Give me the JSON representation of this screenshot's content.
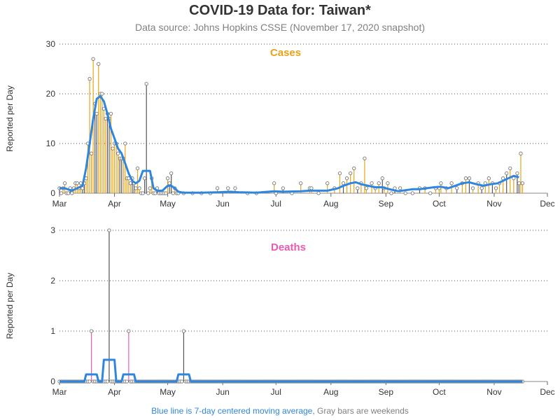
{
  "title": "COVID-19 Data for: Taiwan*",
  "subtitle": "Data source: Johns Hopkins CSSE (November 17, 2020 snapshot)",
  "footnote": {
    "blue_part": "Blue line is 7-day centered moving average,",
    "gray_part": "Gray bars are weekends"
  },
  "colors": {
    "cases": "#e8a317",
    "deaths": "#e75bb0",
    "moving_average": "#2e86de",
    "weekend": "#555555",
    "marker": "#777777"
  },
  "chart_data": [
    {
      "type": "bar",
      "title": "Cases",
      "ylabel": "Reported per Day",
      "ylim": [
        0,
        30
      ],
      "yticks": [
        0,
        10,
        20,
        30
      ],
      "x_start": "2020-03-01",
      "x_end": "2020-12-01",
      "x_ticks": [
        "Mar",
        "Apr",
        "May",
        "Jun",
        "Jul",
        "Aug",
        "Sep",
        "Oct",
        "Nov",
        "Dec"
      ],
      "x_tick_dates": [
        "2020-03-01",
        "2020-04-01",
        "2020-05-01",
        "2020-06-01",
        "2020-07-01",
        "2020-08-01",
        "2020-09-01",
        "2020-10-01",
        "2020-11-01",
        "2020-12-01"
      ],
      "grid": "horizontal dotted",
      "series": [
        {
          "kind": "daily",
          "points": [
            [
              "2020-03-01",
              1
            ],
            [
              "2020-03-02",
              0
            ],
            [
              "2020-03-03",
              1
            ],
            [
              "2020-03-04",
              2
            ],
            [
              "2020-03-05",
              0
            ],
            [
              "2020-03-06",
              0
            ],
            [
              "2020-03-07",
              1
            ],
            [
              "2020-03-08",
              0
            ],
            [
              "2020-03-09",
              1
            ],
            [
              "2020-03-10",
              2
            ],
            [
              "2020-03-11",
              2
            ],
            [
              "2020-03-12",
              1
            ],
            [
              "2020-03-13",
              2
            ],
            [
              "2020-03-14",
              1
            ],
            [
              "2020-03-15",
              2
            ],
            [
              "2020-03-16",
              3
            ],
            [
              "2020-03-17",
              10
            ],
            [
              "2020-03-18",
              23
            ],
            [
              "2020-03-19",
              8
            ],
            [
              "2020-03-20",
              27
            ],
            [
              "2020-03-21",
              18
            ],
            [
              "2020-03-22",
              16
            ],
            [
              "2020-03-23",
              26
            ],
            [
              "2020-03-24",
              20
            ],
            [
              "2020-03-25",
              20
            ],
            [
              "2020-03-26",
              17
            ],
            [
              "2020-03-27",
              15
            ],
            [
              "2020-03-28",
              16
            ],
            [
              "2020-03-29",
              15
            ],
            [
              "2020-03-30",
              16
            ],
            [
              "2020-03-31",
              9
            ],
            [
              "2020-04-01",
              10
            ],
            [
              "2020-04-02",
              10
            ],
            [
              "2020-04-03",
              8
            ],
            [
              "2020-04-04",
              7
            ],
            [
              "2020-04-05",
              7
            ],
            [
              "2020-04-06",
              7
            ],
            [
              "2020-04-07",
              10
            ],
            [
              "2020-04-08",
              3
            ],
            [
              "2020-04-09",
              3
            ],
            [
              "2020-04-10",
              2
            ],
            [
              "2020-04-11",
              3
            ],
            [
              "2020-04-12",
              2
            ],
            [
              "2020-04-13",
              1
            ],
            [
              "2020-04-14",
              5
            ],
            [
              "2020-04-15",
              1
            ],
            [
              "2020-04-16",
              0
            ],
            [
              "2020-04-17",
              0
            ],
            [
              "2020-04-18",
              3
            ],
            [
              "2020-04-19",
              22
            ],
            [
              "2020-04-20",
              0
            ],
            [
              "2020-04-21",
              1
            ],
            [
              "2020-04-22",
              3
            ],
            [
              "2020-04-23",
              0
            ],
            [
              "2020-04-24",
              0
            ],
            [
              "2020-04-25",
              1
            ],
            [
              "2020-04-26",
              0
            ],
            [
              "2020-04-27",
              0
            ],
            [
              "2020-04-28",
              0
            ],
            [
              "2020-04-29",
              0
            ],
            [
              "2020-04-30",
              0
            ],
            [
              "2020-05-01",
              3
            ],
            [
              "2020-05-02",
              2
            ],
            [
              "2020-05-03",
              4
            ],
            [
              "2020-05-04",
              0
            ],
            [
              "2020-05-05",
              1
            ],
            [
              "2020-05-06",
              0
            ],
            [
              "2020-05-07",
              0
            ],
            [
              "2020-05-10",
              0
            ],
            [
              "2020-05-15",
              0
            ],
            [
              "2020-05-20",
              0
            ],
            [
              "2020-05-25",
              0
            ],
            [
              "2020-05-29",
              1
            ],
            [
              "2020-06-04",
              1
            ],
            [
              "2020-06-08",
              1
            ],
            [
              "2020-06-15",
              0
            ],
            [
              "2020-06-20",
              0
            ],
            [
              "2020-06-30",
              2
            ],
            [
              "2020-07-01",
              0
            ],
            [
              "2020-07-05",
              1
            ],
            [
              "2020-07-10",
              0
            ],
            [
              "2020-07-15",
              2
            ],
            [
              "2020-07-20",
              1
            ],
            [
              "2020-07-21",
              1
            ],
            [
              "2020-07-25",
              0
            ],
            [
              "2020-07-30",
              2
            ],
            [
              "2020-08-03",
              1
            ],
            [
              "2020-08-06",
              4
            ],
            [
              "2020-08-08",
              2
            ],
            [
              "2020-08-10",
              3
            ],
            [
              "2020-08-12",
              4
            ],
            [
              "2020-08-14",
              5
            ],
            [
              "2020-08-16",
              1
            ],
            [
              "2020-08-18",
              2
            ],
            [
              "2020-08-20",
              7
            ],
            [
              "2020-08-21",
              1
            ],
            [
              "2020-08-24",
              2
            ],
            [
              "2020-08-26",
              1
            ],
            [
              "2020-08-28",
              2
            ],
            [
              "2020-08-30",
              3
            ],
            [
              "2020-08-31",
              1
            ],
            [
              "2020-09-02",
              2
            ],
            [
              "2020-09-04",
              0
            ],
            [
              "2020-09-06",
              1
            ],
            [
              "2020-09-09",
              1
            ],
            [
              "2020-09-12",
              0
            ],
            [
              "2020-09-16",
              0
            ],
            [
              "2020-09-20",
              1
            ],
            [
              "2020-09-23",
              1
            ],
            [
              "2020-09-26",
              0
            ],
            [
              "2020-09-29",
              1
            ],
            [
              "2020-10-01",
              1
            ],
            [
              "2020-10-02",
              2
            ],
            [
              "2020-10-05",
              1
            ],
            [
              "2020-10-08",
              2
            ],
            [
              "2020-10-11",
              1
            ],
            [
              "2020-10-14",
              2
            ],
            [
              "2020-10-16",
              3
            ],
            [
              "2020-10-18",
              3
            ],
            [
              "2020-10-20",
              1
            ],
            [
              "2020-10-23",
              2
            ],
            [
              "2020-10-25",
              1
            ],
            [
              "2020-10-27",
              2
            ],
            [
              "2020-10-29",
              3
            ],
            [
              "2020-10-31",
              2
            ],
            [
              "2020-11-02",
              1
            ],
            [
              "2020-11-04",
              2
            ],
            [
              "2020-11-06",
              3
            ],
            [
              "2020-11-08",
              4
            ],
            [
              "2020-11-10",
              5
            ],
            [
              "2020-11-12",
              3
            ],
            [
              "2020-11-14",
              4
            ],
            [
              "2020-11-15",
              2
            ],
            [
              "2020-11-16",
              8
            ],
            [
              "2020-11-17",
              2
            ]
          ]
        },
        {
          "kind": "7-day moving average",
          "points": [
            [
              "2020-03-01",
              1
            ],
            [
              "2020-03-04",
              1
            ],
            [
              "2020-03-08",
              0.5
            ],
            [
              "2020-03-11",
              1
            ],
            [
              "2020-03-14",
              1.5
            ],
            [
              "2020-03-16",
              5
            ],
            [
              "2020-03-18",
              10
            ],
            [
              "2020-03-20",
              15
            ],
            [
              "2020-03-22",
              19
            ],
            [
              "2020-03-24",
              19.5
            ],
            [
              "2020-03-26",
              18.5
            ],
            [
              "2020-03-28",
              16
            ],
            [
              "2020-03-30",
              13
            ],
            [
              "2020-04-01",
              11
            ],
            [
              "2020-04-03",
              9
            ],
            [
              "2020-04-05",
              8
            ],
            [
              "2020-04-07",
              6
            ],
            [
              "2020-04-09",
              4
            ],
            [
              "2020-04-11",
              2.5
            ],
            [
              "2020-04-13",
              2
            ],
            [
              "2020-04-15",
              2.5
            ],
            [
              "2020-04-17",
              4.5
            ],
            [
              "2020-04-19",
              4.5
            ],
            [
              "2020-04-21",
              4.5
            ],
            [
              "2020-04-23",
              1
            ],
            [
              "2020-04-25",
              0.5
            ],
            [
              "2020-04-28",
              0.5
            ],
            [
              "2020-05-01",
              1.5
            ],
            [
              "2020-05-03",
              1.5
            ],
            [
              "2020-05-05",
              1
            ],
            [
              "2020-05-07",
              0.3
            ],
            [
              "2020-05-10",
              0.1
            ],
            [
              "2020-05-20",
              0.1
            ],
            [
              "2020-05-30",
              0.2
            ],
            [
              "2020-06-05",
              0.3
            ],
            [
              "2020-06-10",
              0.2
            ],
            [
              "2020-06-20",
              0.1
            ],
            [
              "2020-06-30",
              0.4
            ],
            [
              "2020-07-05",
              0.3
            ],
            [
              "2020-07-15",
              0.4
            ],
            [
              "2020-07-20",
              0.5
            ],
            [
              "2020-07-30",
              0.5
            ],
            [
              "2020-08-05",
              1
            ],
            [
              "2020-08-08",
              1.5
            ],
            [
              "2020-08-12",
              2
            ],
            [
              "2020-08-15",
              2.2
            ],
            [
              "2020-08-18",
              1.8
            ],
            [
              "2020-08-22",
              1.5
            ],
            [
              "2020-08-26",
              1.2
            ],
            [
              "2020-08-30",
              1.2
            ],
            [
              "2020-09-03",
              0.8
            ],
            [
              "2020-09-08",
              0.4
            ],
            [
              "2020-09-12",
              0.6
            ],
            [
              "2020-09-16",
              0.8
            ],
            [
              "2020-09-20",
              0.8
            ],
            [
              "2020-09-24",
              1
            ],
            [
              "2020-09-28",
              1.2
            ],
            [
              "2020-10-02",
              1.3
            ],
            [
              "2020-10-06",
              1
            ],
            [
              "2020-10-10",
              1.5
            ],
            [
              "2020-10-14",
              2
            ],
            [
              "2020-10-18",
              2.2
            ],
            [
              "2020-10-22",
              1.8
            ],
            [
              "2020-10-26",
              1.5
            ],
            [
              "2020-10-30",
              1.8
            ],
            [
              "2020-11-03",
              2
            ],
            [
              "2020-11-06",
              2.5
            ],
            [
              "2020-11-09",
              3
            ],
            [
              "2020-11-12",
              3.5
            ],
            [
              "2020-11-15",
              3.2
            ]
          ]
        }
      ]
    },
    {
      "type": "bar",
      "title": "Deaths",
      "ylabel": "Reported per Day",
      "ylim": [
        0,
        3
      ],
      "yticks": [
        0,
        1,
        2,
        3
      ],
      "x_start": "2020-03-01",
      "x_end": "2020-12-01",
      "x_ticks": [
        "Mar",
        "Apr",
        "May",
        "Jun",
        "Jul",
        "Aug",
        "Sep",
        "Oct",
        "Nov",
        "Dec"
      ],
      "x_tick_dates": [
        "2020-03-01",
        "2020-04-01",
        "2020-05-01",
        "2020-06-01",
        "2020-07-01",
        "2020-08-01",
        "2020-09-01",
        "2020-10-01",
        "2020-11-01",
        "2020-12-01"
      ],
      "grid": "horizontal dotted",
      "series": [
        {
          "kind": "daily",
          "points": [
            [
              "2020-03-19",
              1
            ],
            [
              "2020-03-29",
              3
            ],
            [
              "2020-04-09",
              1
            ],
            [
              "2020-05-10",
              1
            ]
          ]
        },
        {
          "kind": "7-day moving average",
          "points": [
            [
              "2020-03-01",
              0
            ],
            [
              "2020-03-15",
              0
            ],
            [
              "2020-03-16",
              0.14
            ],
            [
              "2020-03-22",
              0.14
            ],
            [
              "2020-03-23",
              0
            ],
            [
              "2020-03-25",
              0
            ],
            [
              "2020-03-26",
              0.43
            ],
            [
              "2020-04-01",
              0.43
            ],
            [
              "2020-04-02",
              0
            ],
            [
              "2020-04-05",
              0
            ],
            [
              "2020-04-06",
              0.14
            ],
            [
              "2020-04-12",
              0.14
            ],
            [
              "2020-04-13",
              0
            ],
            [
              "2020-05-06",
              0
            ],
            [
              "2020-05-07",
              0.14
            ],
            [
              "2020-05-13",
              0.14
            ],
            [
              "2020-05-14",
              0
            ],
            [
              "2020-11-17",
              0
            ]
          ]
        }
      ]
    }
  ]
}
